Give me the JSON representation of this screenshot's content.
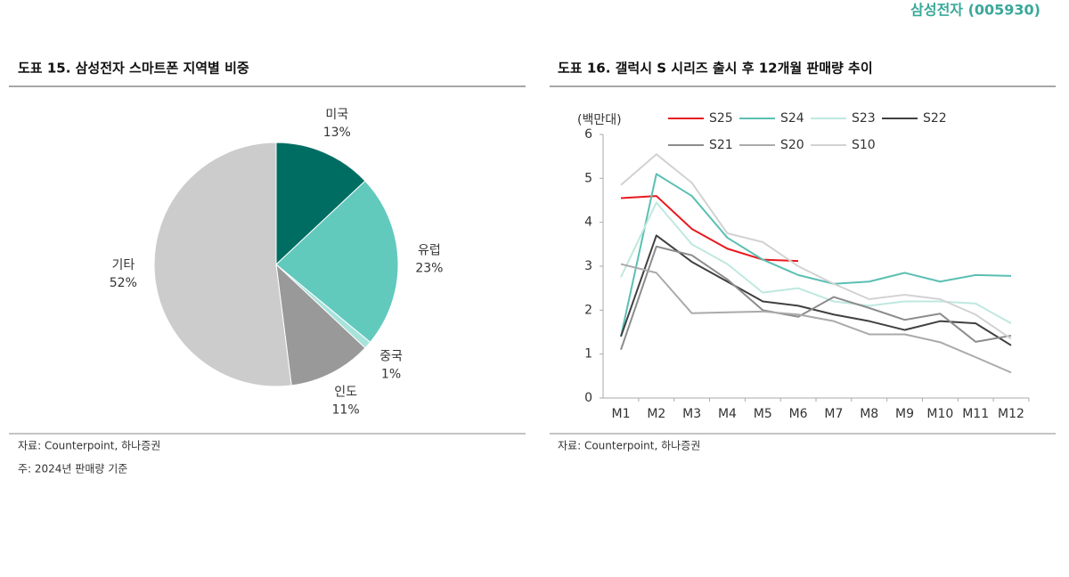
{
  "header": {
    "company": "삼성전자 (005930)"
  },
  "chart_data": [
    {
      "type": "pie",
      "title": "도표 15. 삼성전자 스마트폰 지역별 비중",
      "categories": [
        "미국",
        "유럽",
        "중국",
        "인도",
        "기타"
      ],
      "values": [
        13,
        23,
        1,
        11,
        52
      ],
      "value_labels": [
        "13%",
        "23%",
        "1%",
        "11%",
        "52%"
      ],
      "colors": [
        "#006d63",
        "#62c9bd",
        "#a8e3db",
        "#999999",
        "#cccccc"
      ],
      "source": "자료: Counterpoint, 하나증권",
      "note": "주: 2024년 판매량 기준"
    },
    {
      "type": "line",
      "title": "도표 16. 갤럭시 S 시리즈 출시 후 12개월 판매량 추이",
      "y_label": "(백만대)",
      "categories": [
        "M1",
        "M2",
        "M3",
        "M4",
        "M5",
        "M6",
        "M7",
        "M8",
        "M9",
        "M10",
        "M11",
        "M12"
      ],
      "ylim": [
        0,
        6
      ],
      "yticks": [
        0,
        1,
        2,
        3,
        4,
        5,
        6
      ],
      "series": [
        {
          "name": "S25",
          "color": "#e8191f",
          "values": [
            4.55,
            4.6,
            3.85,
            3.4,
            3.15,
            3.12,
            null,
            null,
            null,
            null,
            null,
            null
          ]
        },
        {
          "name": "S24",
          "color": "#5bbfb3",
          "values": [
            1.4,
            5.1,
            4.6,
            3.65,
            3.15,
            2.8,
            2.6,
            2.65,
            2.85,
            2.65,
            2.8,
            2.78
          ]
        },
        {
          "name": "S23",
          "color": "#bfe8df",
          "values": [
            2.75,
            4.45,
            3.5,
            3.05,
            2.4,
            2.5,
            2.2,
            2.1,
            2.2,
            2.2,
            2.15,
            1.7
          ]
        },
        {
          "name": "S22",
          "color": "#404040",
          "values": [
            1.4,
            3.7,
            3.1,
            2.65,
            2.2,
            2.1,
            1.9,
            1.75,
            1.55,
            1.75,
            1.7,
            1.2
          ]
        },
        {
          "name": "S21",
          "color": "#8c8c8c",
          "values": [
            1.1,
            3.45,
            3.25,
            2.7,
            2.0,
            1.85,
            2.3,
            2.05,
            1.78,
            1.92,
            1.28,
            1.42
          ]
        },
        {
          "name": "S20",
          "color": "#aaaaaa",
          "values": [
            3.05,
            2.85,
            1.93,
            1.95,
            1.97,
            1.9,
            1.75,
            1.45,
            1.45,
            1.27,
            0.93,
            0.58
          ]
        },
        {
          "name": "S10",
          "color": "#d2d2d2",
          "values": [
            4.85,
            5.55,
            4.9,
            3.75,
            3.55,
            3.0,
            2.6,
            2.25,
            2.35,
            2.25,
            1.9,
            1.35
          ]
        }
      ],
      "source": "자료: Counterpoint, 하나증권"
    }
  ]
}
